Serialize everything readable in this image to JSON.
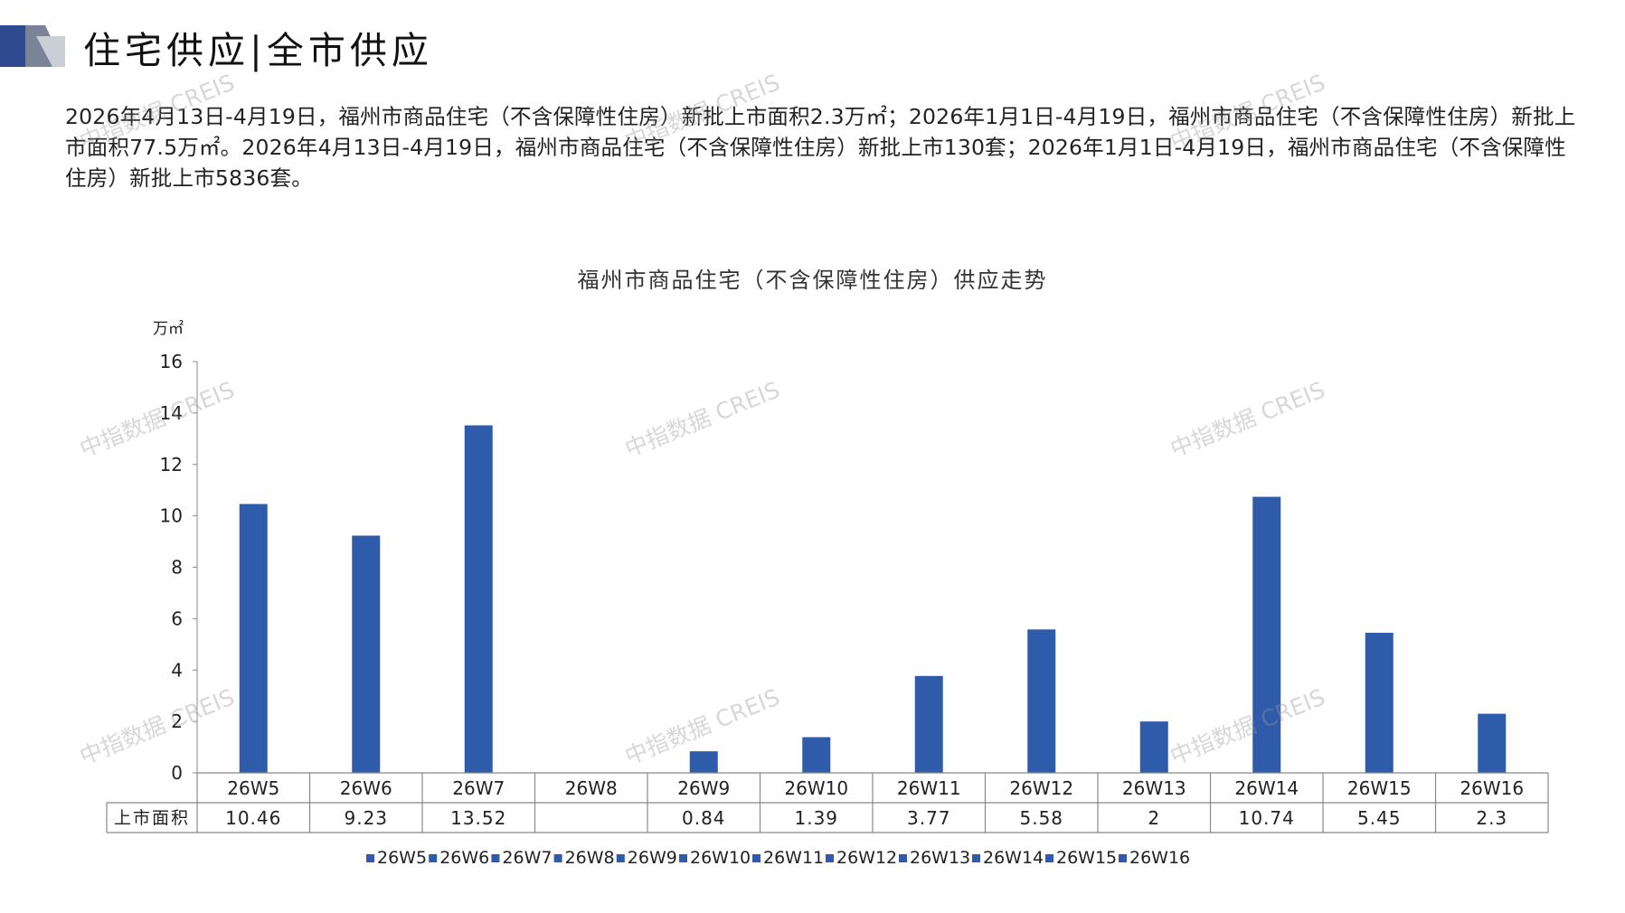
{
  "page": {
    "title": "住宅供应|全市供应",
    "summary": "2026年4月13日-4月19日，福州市商品住宅（不含保障性住房）新批上市面积2.3万㎡；2026年1月1日-4月19日，福州市商品住宅（不含保障性住房）新批上市面积77.5万㎡。2026年4月13日-4月19日，福州市商品住宅（不含保障性住房）新批上市130套；2026年1月1日-4月19日，福州市商品住宅（不含保障性住房）新批上市5836套。",
    "watermark": "中指数据 CREIS"
  },
  "chart_data": {
    "type": "bar",
    "title": "福州市商品住宅（不含保障性住房）供应走势",
    "ylabel": "万㎡",
    "ylim": [
      0,
      16
    ],
    "yticks": [
      "0",
      "2",
      "4",
      "6",
      "8",
      "10",
      "12",
      "14",
      "16"
    ],
    "categories": [
      "26W5",
      "26W6",
      "26W7",
      "26W8",
      "26W9",
      "26W10",
      "26W11",
      "26W12",
      "26W13",
      "26W14",
      "26W15",
      "26W16"
    ],
    "series": [
      {
        "name": "上市面积",
        "values": [
          10.46,
          9.23,
          13.52,
          null,
          0.84,
          1.39,
          3.77,
          5.58,
          2,
          10.74,
          5.45,
          2.3
        ],
        "labels": [
          "10.46",
          "9.23",
          "13.52",
          "",
          "0.84",
          "1.39",
          "3.77",
          "5.58",
          "2",
          "10.74",
          "5.45",
          "2.3"
        ]
      }
    ],
    "legend": [
      "26W5",
      "26W6",
      "26W7",
      "26W8",
      "26W9",
      "26W10",
      "26W11",
      "26W12",
      "26W13",
      "26W14",
      "26W15",
      "26W16"
    ],
    "legend_position": "bottom",
    "grid": false,
    "data_table": true
  },
  "colors": {
    "bar": "#2e5caa",
    "axis": "#888888",
    "logo_dark": "#2f4a8f",
    "logo_light": "#b5bcc8"
  }
}
